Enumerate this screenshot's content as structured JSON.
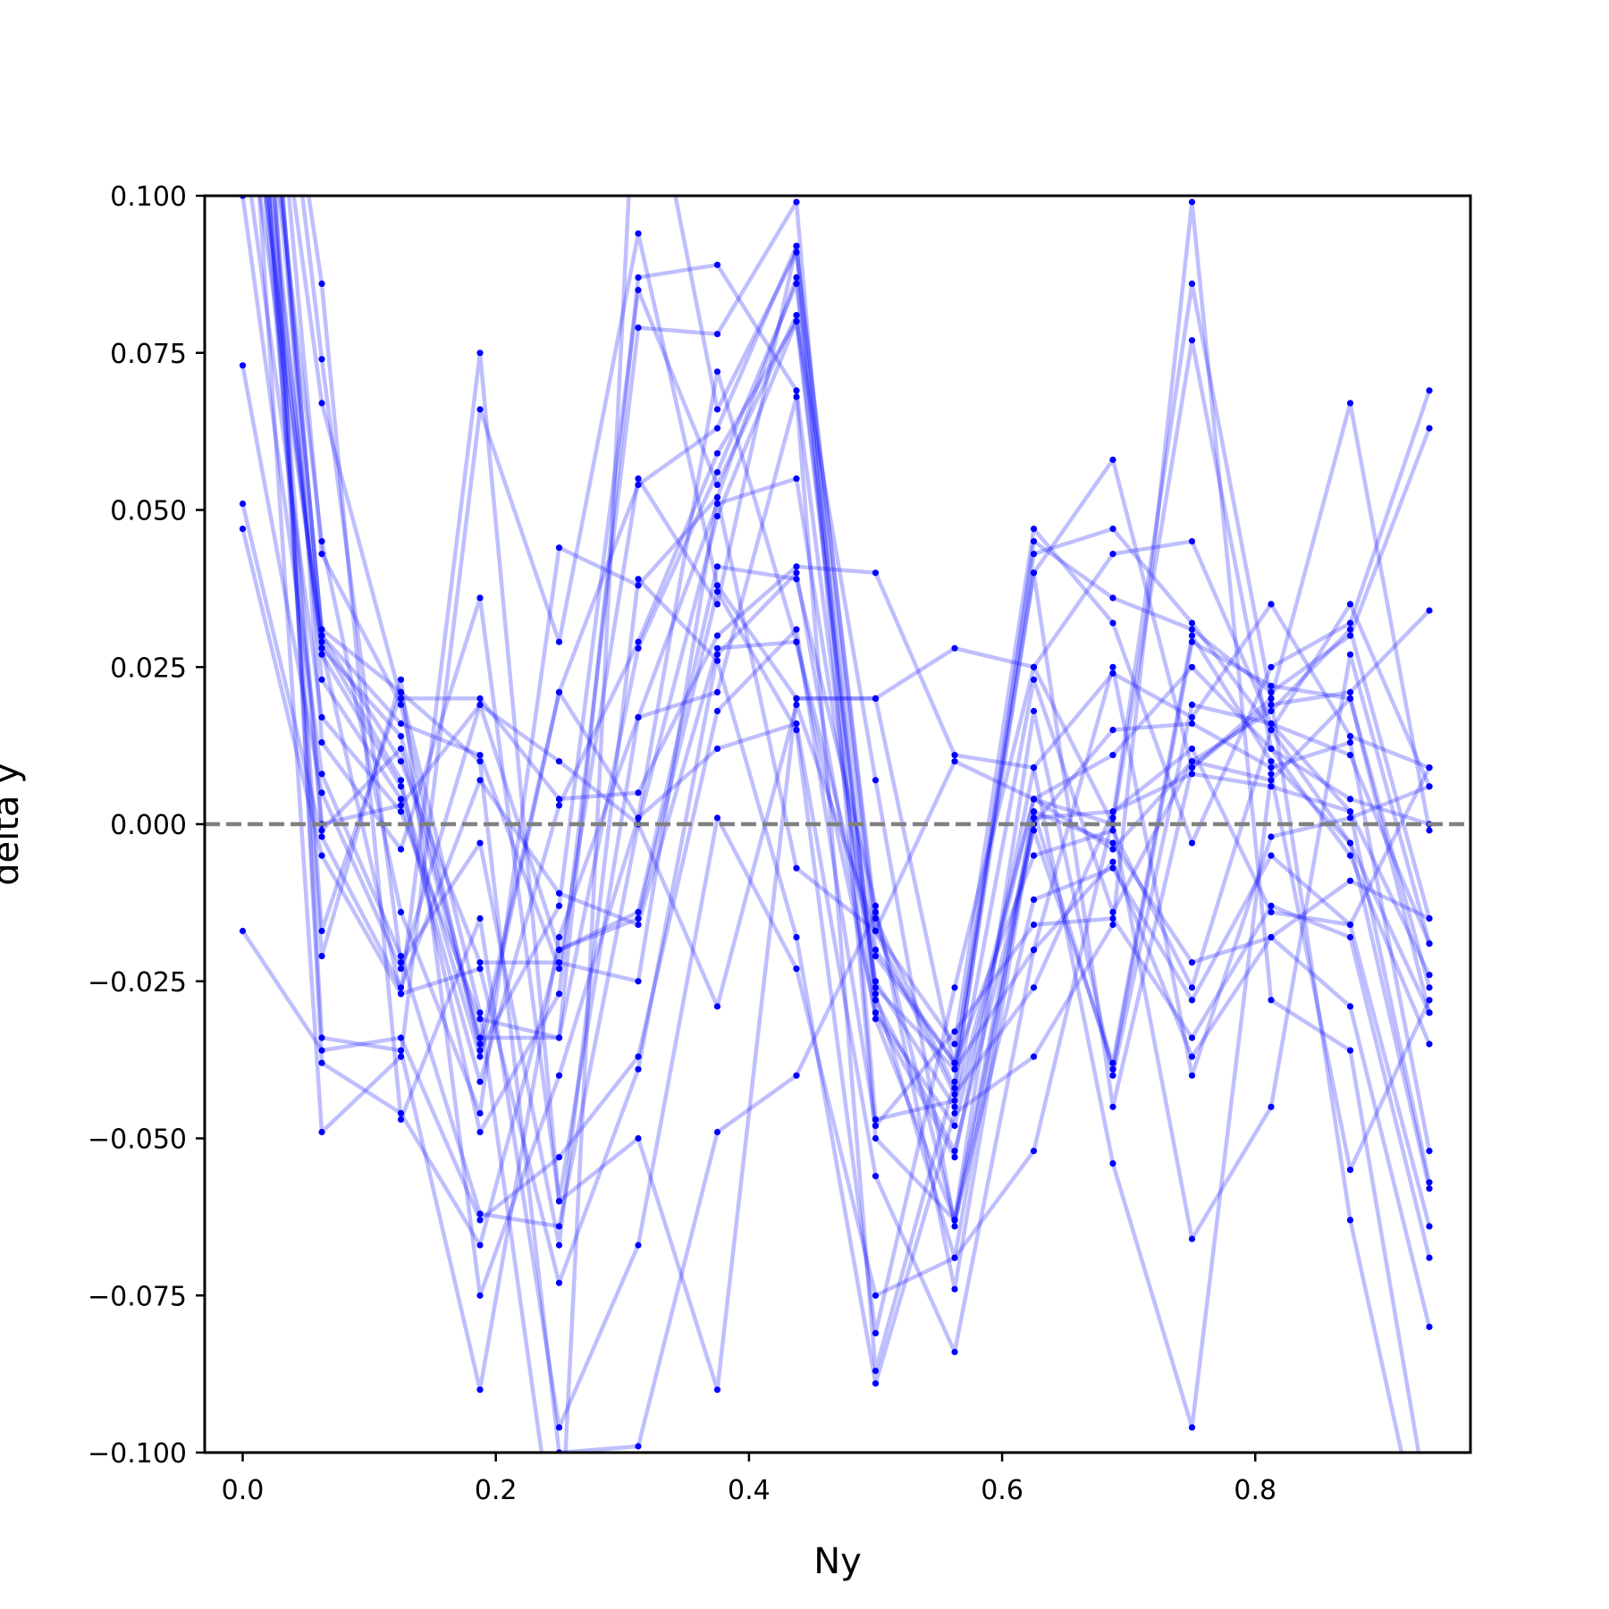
{
  "chart_data": {
    "type": "line",
    "xlabel": "Ny",
    "ylabel": "delta y",
    "xlim": [
      -0.03,
      0.97
    ],
    "ylim": [
      -0.1,
      0.1
    ],
    "x": [
      0.0,
      0.0625,
      0.125,
      0.1875,
      0.25,
      0.3125,
      0.375,
      0.4375,
      0.5,
      0.5625,
      0.625,
      0.6875,
      0.75,
      0.8125,
      0.875,
      0.9375
    ],
    "xticks": [
      0.0,
      0.2,
      0.4,
      0.6,
      0.8
    ],
    "xtick_labels": [
      "0.0",
      "0.2",
      "0.4",
      "0.6",
      "0.8"
    ],
    "yticks": [
      -0.1,
      -0.075,
      -0.05,
      -0.025,
      0.0,
      0.025,
      0.05,
      0.075,
      0.1
    ],
    "ytick_labels": [
      "−0.100",
      "−0.075",
      "−0.050",
      "−0.025",
      "0.000",
      "0.025",
      "0.050",
      "0.075",
      "0.100"
    ],
    "reference_line": {
      "y": 0.0,
      "style": "dashed",
      "color": "#808080"
    },
    "line_color": "#0000ff",
    "line_alpha": 0.25,
    "marker_color": "#0000ff",
    "series": [
      {
        "values": [
          0.16,
          0.031,
          0.021,
          -0.03,
          -0.12,
          0.13,
          0.066,
          0.091,
          -0.015,
          -0.042,
          0.045,
          0.036,
          0.031,
          0.021,
          0.03,
          0.063
        ]
      },
      {
        "values": [
          0.17,
          0.03,
          0.016,
          0.011,
          -0.023,
          0.055,
          0.035,
          0.092,
          -0.017,
          -0.035,
          0.047,
          0.032,
          -0.003,
          0.025,
          0.032,
          0.069
        ]
      },
      {
        "values": [
          0.15,
          0.045,
          -0.014,
          -0.046,
          0.044,
          0.038,
          0.052,
          0.087,
          -0.02,
          -0.038,
          0.04,
          0.058,
          0.009,
          0.019,
          0.021,
          0.034
        ]
      },
      {
        "values": [
          0.18,
          0.043,
          0.019,
          -0.036,
          -0.013,
          0.085,
          0.054,
          0.081,
          -0.026,
          -0.039,
          0.043,
          0.047,
          0.032,
          0.015,
          0.035,
          0.006
        ]
      },
      {
        "values": [
          0.14,
          0.028,
          0.014,
          -0.034,
          -0.034,
          0.087,
          0.089,
          0.069,
          -0.03,
          -0.053,
          0.009,
          0.024,
          0.017,
          0.035,
          0.014,
          0.009
        ]
      },
      {
        "values": [
          0.12,
          0.029,
          0.007,
          -0.049,
          -0.027,
          0.079,
          0.078,
          0.099,
          -0.047,
          -0.044,
          0.023,
          -0.014,
          0.01,
          0.018,
          0.031,
          -0.015
        ]
      },
      {
        "values": [
          0.13,
          0.027,
          0.006,
          -0.037,
          0.021,
          0.054,
          0.063,
          0.092,
          -0.05,
          -0.063,
          0.018,
          -0.04,
          0.019,
          0.016,
          0.011,
          -0.019
        ]
      },
      {
        "values": [
          0.15,
          0.023,
          0.004,
          -0.041,
          0.003,
          0.029,
          0.059,
          0.08,
          -0.027,
          -0.069,
          0.002,
          -0.039,
          0.029,
          0.022,
          0.02,
          -0.026
        ]
      },
      {
        "values": [
          0.11,
          0.017,
          0.002,
          -0.031,
          -0.034,
          0.028,
          0.056,
          0.086,
          -0.028,
          -0.052,
          -0.001,
          -0.038,
          0.03,
          0.01,
          -0.003,
          -0.03
        ]
      },
      {
        "values": [
          0.19,
          0.013,
          -0.004,
          0.036,
          -0.06,
          0.017,
          0.051,
          0.055,
          -0.025,
          -0.045,
          0.004,
          0.011,
          0.025,
          0.012,
          -0.005,
          -0.035
        ]
      },
      {
        "values": [
          0.1,
          0.008,
          -0.021,
          -0.062,
          -0.064,
          0.0,
          0.049,
          0.08,
          0.007,
          -0.064,
          0.0,
          0.015,
          0.016,
          0.009,
          0.013,
          -0.052
        ]
      },
      {
        "values": [
          0.073,
          0.005,
          -0.023,
          0.019,
          -0.02,
          -0.014,
          0.041,
          0.039,
          -0.013,
          -0.074,
          0.001,
          0.002,
          0.008,
          0.006,
          0.002,
          -0.057
        ]
      },
      {
        "values": [
          0.051,
          -0.002,
          -0.026,
          0.007,
          -0.011,
          -0.016,
          0.028,
          0.029,
          -0.021,
          -0.038,
          -0.005,
          -0.001,
          -0.026,
          0.015,
          -0.003,
          -0.058
        ]
      },
      {
        "values": [
          0.047,
          -0.005,
          -0.027,
          -0.023,
          -0.073,
          -0.039,
          0.027,
          0.04,
          -0.031,
          -0.063,
          -0.012,
          -0.007,
          -0.028,
          -0.005,
          -0.016,
          -0.064
        ]
      },
      {
        "values": [
          -0.017,
          -0.036,
          -0.034,
          -0.063,
          -0.053,
          -0.037,
          0.018,
          0.031,
          -0.048,
          -0.033,
          -0.016,
          -0.015,
          -0.034,
          -0.013,
          -0.018,
          -0.069
        ]
      },
      {
        "values": [
          0.16,
          -0.021,
          0.023,
          -0.075,
          -0.04,
          0.001,
          0.012,
          0.016,
          -0.056,
          -0.084,
          -0.02,
          -0.006,
          -0.037,
          -0.018,
          -0.029,
          -0.08
        ]
      },
      {
        "values": [
          0.2,
          -0.038,
          -0.046,
          -0.067,
          -0.02,
          -0.015,
          0.037,
          0.015,
          -0.081,
          -0.026,
          0.025,
          0.043,
          0.045,
          0.016,
          0.002,
          -0.024
        ]
      },
      {
        "values": [
          0.19,
          -0.034,
          -0.036,
          -0.09,
          -0.018,
          0.017,
          0.021,
          0.068,
          -0.087,
          -0.041,
          0.04,
          -0.045,
          0.009,
          0.02,
          0.067,
          -0.001
        ]
      },
      {
        "values": [
          0.14,
          -0.049,
          -0.037,
          0.066,
          0.029,
          0.094,
          0.038,
          0.02,
          0.02,
          0.028,
          0.025,
          0.0,
          -0.066,
          -0.045,
          0.027,
          -0.019
        ]
      },
      {
        "values": [
          0.16,
          0.067,
          0.02,
          0.02,
          0.004,
          0.005,
          0.03,
          0.041,
          0.04,
          0.011,
          0.009,
          -0.054,
          -0.096,
          0.008,
          -0.055,
          -0.028
        ]
      },
      {
        "values": [
          0.17,
          0.086,
          -0.047,
          -0.015,
          -0.096,
          -0.067,
          0.001,
          -0.023,
          -0.075,
          -0.069,
          -0.052,
          0.001,
          0.086,
          0.02,
          -0.063,
          -0.12
        ]
      },
      {
        "values": [
          0.18,
          0.074,
          -0.022,
          -0.003,
          -0.067,
          0.039,
          0.026,
          -0.018,
          -0.089,
          -0.046,
          -0.037,
          -0.016,
          0.099,
          -0.028,
          -0.036,
          -0.11
        ]
      },
      {
        "values": [
          0.17,
          0.03,
          0.01,
          -0.022,
          -0.022,
          -0.025,
          0.052,
          -0.007,
          -0.017,
          0.01,
          0.004,
          0.0,
          0.077,
          0.012,
          0.004,
          0.0
        ]
      },
      {
        "values": [
          0.16,
          -0.017,
          0.021,
          0.01,
          -0.1,
          -0.099,
          -0.049,
          -0.04,
          -0.014,
          -0.063,
          0.002,
          -0.003,
          -0.022,
          -0.018,
          -0.009,
          -0.015
        ]
      },
      {
        "values": [
          0.15,
          0.0,
          0.003,
          0.019,
          0.01,
          0.0,
          -0.029,
          0.019,
          -0.017,
          -0.043,
          -0.026,
          0.002,
          0.012,
          -0.014,
          -0.016,
          0.009
        ]
      },
      {
        "values": [
          0.14,
          -0.001,
          0.012,
          -0.035,
          0.021,
          0.001,
          0.072,
          0.029,
          -0.03,
          -0.048,
          0.004,
          -0.004,
          0.01,
          0.007,
          0.02,
          -0.03
        ]
      },
      {
        "values": [
          0.13,
          0.028,
          -0.027,
          0.075,
          -0.06,
          -0.05,
          -0.09,
          0.02,
          0.02,
          -0.039,
          -0.02,
          0.025,
          -0.04,
          -0.002,
          0.001,
          0.006
        ]
      }
    ]
  }
}
